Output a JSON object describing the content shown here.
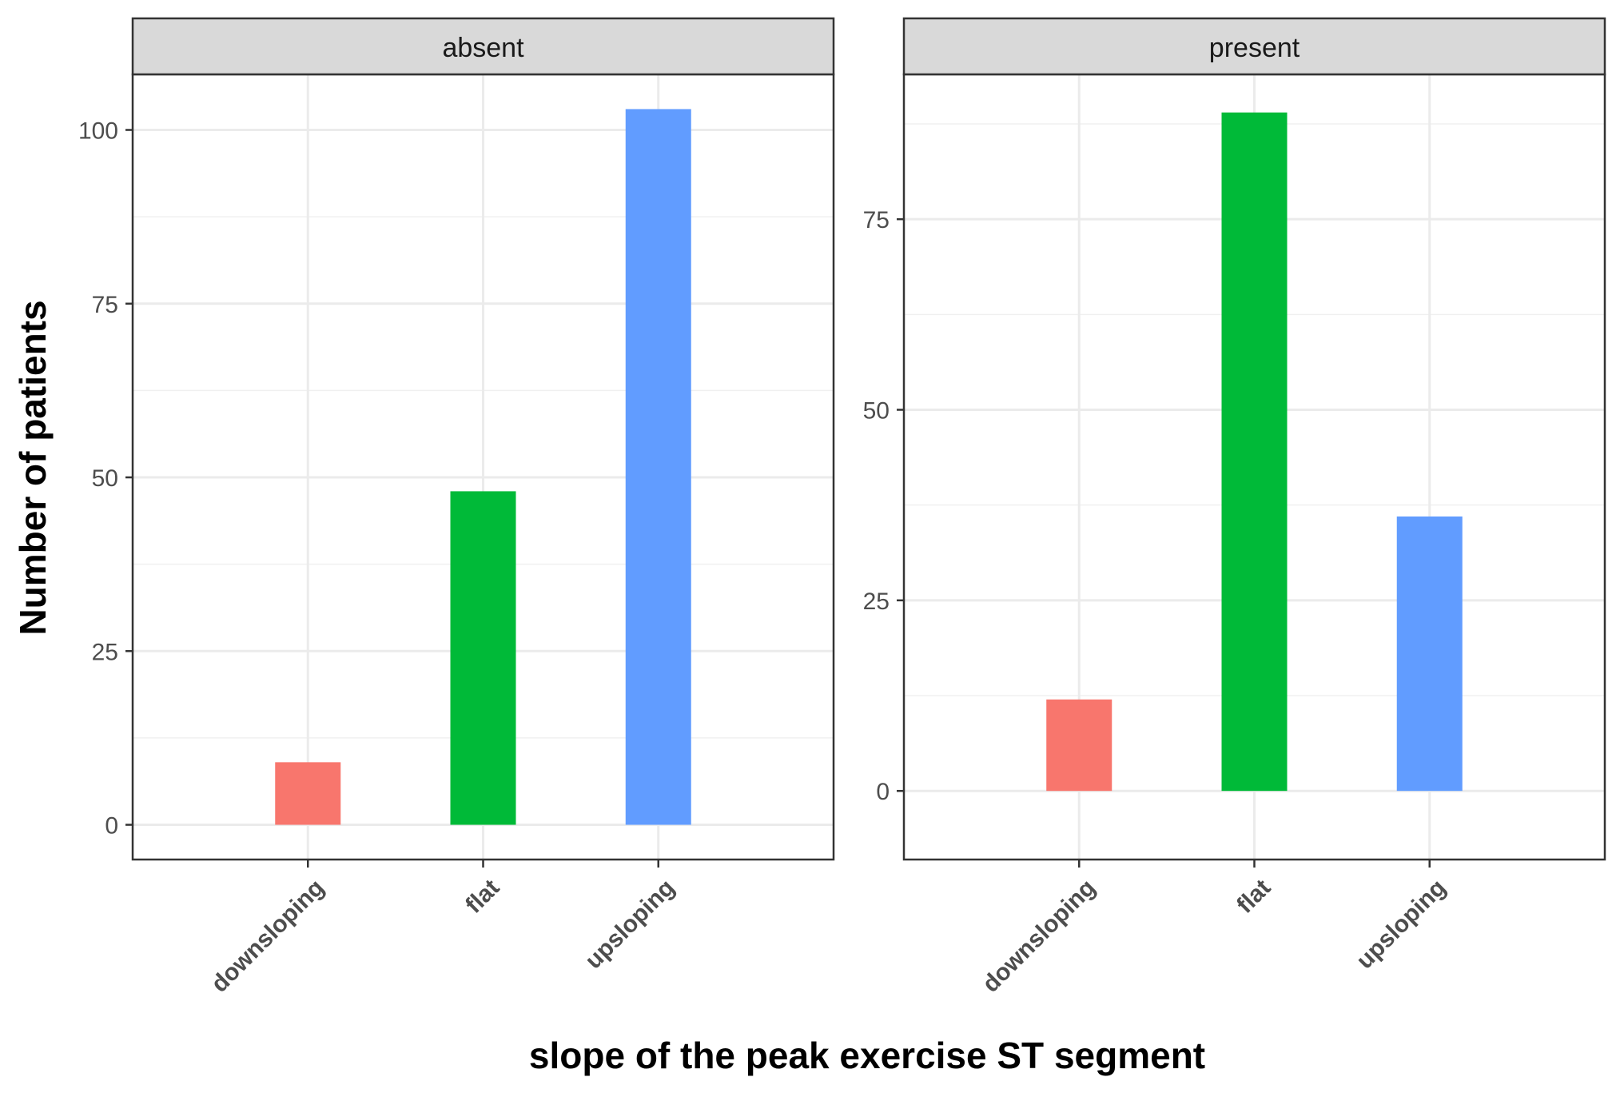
{
  "chart_data": {
    "type": "bar",
    "xlabel": "slope of the peak exercise ST segment",
    "ylabel": "Number of patients",
    "categories": [
      "downsloping",
      "flat",
      "upsloping"
    ],
    "colors": {
      "downsloping": "#F8766D",
      "flat": "#00BA38",
      "upsloping": "#619CFF"
    },
    "grid": true,
    "legend": "none",
    "facets": [
      {
        "label": "absent",
        "values": [
          9,
          48,
          103
        ],
        "ylim": [
          -5,
          108
        ],
        "yticks": [
          0,
          25,
          50,
          75,
          100
        ]
      },
      {
        "label": "present",
        "values": [
          12,
          89,
          36
        ],
        "ylim": [
          -9,
          94
        ],
        "yticks": [
          0,
          25,
          50,
          75
        ]
      }
    ]
  }
}
